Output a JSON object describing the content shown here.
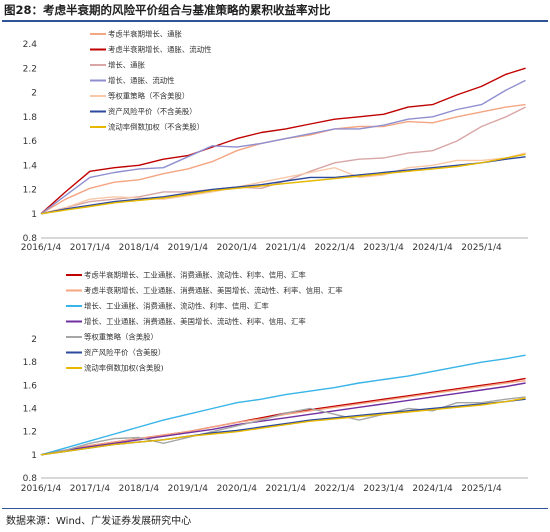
{
  "figure": {
    "title": "图28：考虑半衰期的风险平价组合与基准策略的累积收益率对比",
    "source": "数据来源：Wind、广发证券发展研究中心"
  },
  "chart_data": [
    {
      "type": "line",
      "x_ticks": [
        "2016/1/4",
        "2017/1/4",
        "2018/1/4",
        "2019/1/4",
        "2020/1/4",
        "2021/1/4",
        "2022/1/4",
        "2023/1/4",
        "2024/1/4",
        "2025/1/4"
      ],
      "ylim": [
        0.8,
        2.4
      ],
      "y_ticks": [
        "0.8",
        "1",
        "1.2",
        "1.4",
        "1.6",
        "1.8",
        "2",
        "2.2",
        "2.4"
      ],
      "legend_position": "top-left",
      "series": [
        {
          "name": "考虑半衰期增长、通胀",
          "color": "#f4a582",
          "x": [
            2016.0,
            2016.5,
            2017.0,
            2017.5,
            2018.0,
            2018.5,
            2019.0,
            2019.5,
            2020.0,
            2020.5,
            2021.0,
            2021.5,
            2022.0,
            2022.5,
            2023.0,
            2023.5,
            2024.0,
            2024.5,
            2025.0,
            2025.5,
            2025.9
          ],
          "y": [
            1.0,
            1.12,
            1.21,
            1.26,
            1.28,
            1.33,
            1.37,
            1.43,
            1.52,
            1.58,
            1.62,
            1.65,
            1.7,
            1.72,
            1.72,
            1.76,
            1.75,
            1.8,
            1.84,
            1.88,
            1.9
          ]
        },
        {
          "name": "考虑半衰期增长、通胀、流动性",
          "color": "#c00000",
          "x": [
            2016.0,
            2016.5,
            2017.0,
            2017.5,
            2018.0,
            2018.5,
            2019.0,
            2019.5,
            2020.0,
            2020.5,
            2021.0,
            2021.5,
            2022.0,
            2022.5,
            2023.0,
            2023.5,
            2024.0,
            2024.5,
            2025.0,
            2025.5,
            2025.9
          ],
          "y": [
            1.0,
            1.18,
            1.35,
            1.38,
            1.4,
            1.45,
            1.48,
            1.55,
            1.62,
            1.67,
            1.7,
            1.74,
            1.78,
            1.8,
            1.82,
            1.88,
            1.9,
            1.98,
            2.05,
            2.15,
            2.2
          ]
        },
        {
          "name": "增长、通胀",
          "color": "#d9a6a6",
          "x": [
            2016.0,
            2016.5,
            2017.0,
            2017.5,
            2018.0,
            2018.5,
            2019.0,
            2019.5,
            2020.0,
            2020.5,
            2021.0,
            2021.5,
            2022.0,
            2022.5,
            2023.0,
            2023.5,
            2024.0,
            2024.5,
            2025.0,
            2025.5,
            2025.9
          ],
          "y": [
            1.0,
            1.05,
            1.1,
            1.12,
            1.14,
            1.18,
            1.18,
            1.2,
            1.22,
            1.21,
            1.27,
            1.35,
            1.42,
            1.45,
            1.46,
            1.5,
            1.52,
            1.6,
            1.72,
            1.8,
            1.88
          ]
        },
        {
          "name": "增长、通胀、流动性",
          "color": "#8f8fd0",
          "x": [
            2016.0,
            2016.5,
            2017.0,
            2017.5,
            2018.0,
            2018.5,
            2019.0,
            2019.5,
            2020.0,
            2020.5,
            2021.0,
            2021.5,
            2022.0,
            2022.5,
            2023.0,
            2023.5,
            2024.0,
            2024.5,
            2025.0,
            2025.5,
            2025.9
          ],
          "y": [
            1.0,
            1.15,
            1.3,
            1.34,
            1.37,
            1.38,
            1.47,
            1.56,
            1.55,
            1.58,
            1.62,
            1.66,
            1.7,
            1.7,
            1.73,
            1.78,
            1.8,
            1.86,
            1.9,
            2.02,
            2.1
          ]
        },
        {
          "name": "等权重策略（不含美股）",
          "color": "#f9c8a8",
          "x": [
            2016.0,
            2016.5,
            2017.0,
            2017.5,
            2018.0,
            2018.5,
            2019.0,
            2019.5,
            2020.0,
            2020.5,
            2021.0,
            2021.5,
            2022.0,
            2022.5,
            2023.0,
            2023.5,
            2024.0,
            2024.5,
            2025.0,
            2025.5,
            2025.9
          ],
          "y": [
            1.0,
            1.05,
            1.12,
            1.14,
            1.13,
            1.12,
            1.15,
            1.18,
            1.22,
            1.26,
            1.3,
            1.34,
            1.38,
            1.3,
            1.32,
            1.38,
            1.4,
            1.44,
            1.44,
            1.46,
            1.5
          ]
        },
        {
          "name": "资产风险平价（不含美股）",
          "color": "#2e4a9e",
          "x": [
            2016.0,
            2016.5,
            2017.0,
            2017.5,
            2018.0,
            2018.5,
            2019.0,
            2019.5,
            2020.0,
            2020.5,
            2021.0,
            2021.5,
            2022.0,
            2022.5,
            2023.0,
            2023.5,
            2024.0,
            2024.5,
            2025.0,
            2025.5,
            2025.9
          ],
          "y": [
            1.0,
            1.04,
            1.07,
            1.1,
            1.12,
            1.14,
            1.17,
            1.2,
            1.22,
            1.24,
            1.27,
            1.3,
            1.3,
            1.32,
            1.34,
            1.36,
            1.38,
            1.4,
            1.42,
            1.45,
            1.47
          ]
        },
        {
          "name": "流动率倒数加权（不含美股）",
          "color": "#e6b800",
          "x": [
            2016.0,
            2016.5,
            2017.0,
            2017.5,
            2018.0,
            2018.5,
            2019.0,
            2019.5,
            2020.0,
            2020.5,
            2021.0,
            2021.5,
            2022.0,
            2022.5,
            2023.0,
            2023.5,
            2024.0,
            2024.5,
            2025.0,
            2025.5,
            2025.9
          ],
          "y": [
            1.0,
            1.03,
            1.06,
            1.09,
            1.11,
            1.13,
            1.16,
            1.19,
            1.21,
            1.23,
            1.25,
            1.27,
            1.29,
            1.31,
            1.33,
            1.35,
            1.37,
            1.39,
            1.42,
            1.46,
            1.49
          ]
        }
      ]
    },
    {
      "type": "line",
      "x_ticks": [
        "2016/1/4",
        "2017/1/4",
        "2018/1/4",
        "2019/1/4",
        "2020/1/4",
        "2021/1/4",
        "2022/1/4",
        "2023/1/4",
        "2024/1/4",
        "2025/1/4"
      ],
      "ylim": [
        0.8,
        2.0
      ],
      "y_ticks": [
        "0.8",
        "1",
        "1.2",
        "1.4",
        "1.6",
        "1.8",
        "2"
      ],
      "legend_position": "top-left",
      "series": [
        {
          "name": "考虑半衰期增长、工业通胀、消费通胀、流动性、利率、信用、汇率",
          "color": "#c00000",
          "x": [
            2016.0,
            2016.5,
            2017.0,
            2017.5,
            2018.0,
            2018.5,
            2019.0,
            2019.5,
            2020.0,
            2020.5,
            2021.0,
            2021.5,
            2022.0,
            2022.5,
            2023.0,
            2023.5,
            2024.0,
            2024.5,
            2025.0,
            2025.5,
            2025.9
          ],
          "y": [
            1.0,
            1.04,
            1.08,
            1.11,
            1.14,
            1.17,
            1.2,
            1.24,
            1.28,
            1.32,
            1.36,
            1.39,
            1.42,
            1.45,
            1.48,
            1.51,
            1.54,
            1.57,
            1.6,
            1.63,
            1.66
          ]
        },
        {
          "name": "考虑半衰期增长、工业通胀、消费通胀、美国增长、流动性、利率、信用、汇率",
          "color": "#f4a582",
          "x": [
            2016.0,
            2016.5,
            2017.0,
            2017.5,
            2018.0,
            2018.5,
            2019.0,
            2019.5,
            2020.0,
            2020.5,
            2021.0,
            2021.5,
            2022.0,
            2022.5,
            2023.0,
            2023.5,
            2024.0,
            2024.5,
            2025.0,
            2025.5,
            2025.9
          ],
          "y": [
            1.0,
            1.04,
            1.08,
            1.11,
            1.14,
            1.17,
            1.2,
            1.24,
            1.28,
            1.31,
            1.35,
            1.38,
            1.41,
            1.44,
            1.47,
            1.5,
            1.53,
            1.56,
            1.59,
            1.62,
            1.64
          ]
        },
        {
          "name": "增长、工业通胀、消费通胀、流动性、利率、信用、汇率",
          "color": "#38b4e8",
          "x": [
            2016.0,
            2016.5,
            2017.0,
            2017.5,
            2018.0,
            2018.5,
            2019.0,
            2019.5,
            2020.0,
            2020.5,
            2021.0,
            2021.5,
            2022.0,
            2022.5,
            2023.0,
            2023.5,
            2024.0,
            2024.5,
            2025.0,
            2025.5,
            2025.9
          ],
          "y": [
            1.0,
            1.06,
            1.12,
            1.18,
            1.24,
            1.3,
            1.35,
            1.4,
            1.45,
            1.48,
            1.52,
            1.55,
            1.58,
            1.62,
            1.65,
            1.68,
            1.72,
            1.76,
            1.8,
            1.83,
            1.86
          ]
        },
        {
          "name": "增长、工业通胀、消费通胀、美国增长、流动性、利率、信用、汇率",
          "color": "#7030a0",
          "x": [
            2016.0,
            2016.5,
            2017.0,
            2017.5,
            2018.0,
            2018.5,
            2019.0,
            2019.5,
            2020.0,
            2020.5,
            2021.0,
            2021.5,
            2022.0,
            2022.5,
            2023.0,
            2023.5,
            2024.0,
            2024.5,
            2025.0,
            2025.5,
            2025.9
          ],
          "y": [
            1.0,
            1.04,
            1.07,
            1.1,
            1.13,
            1.16,
            1.19,
            1.22,
            1.26,
            1.29,
            1.32,
            1.35,
            1.38,
            1.41,
            1.44,
            1.47,
            1.5,
            1.53,
            1.56,
            1.59,
            1.62
          ]
        },
        {
          "name": "等权重策略（含美股）",
          "color": "#a6a6a6",
          "x": [
            2016.0,
            2016.5,
            2017.0,
            2017.5,
            2018.0,
            2018.5,
            2019.0,
            2019.5,
            2020.0,
            2020.5,
            2021.0,
            2021.5,
            2022.0,
            2022.5,
            2023.0,
            2023.5,
            2024.0,
            2024.5,
            2025.0,
            2025.5,
            2025.9
          ],
          "y": [
            1.0,
            1.04,
            1.1,
            1.14,
            1.15,
            1.1,
            1.15,
            1.2,
            1.25,
            1.3,
            1.36,
            1.4,
            1.35,
            1.3,
            1.35,
            1.4,
            1.38,
            1.45,
            1.45,
            1.48,
            1.5
          ]
        },
        {
          "name": "资产风险平价（含美股）",
          "color": "#2e4a9e",
          "x": [
            2016.0,
            2016.5,
            2017.0,
            2017.5,
            2018.0,
            2018.5,
            2019.0,
            2019.5,
            2020.0,
            2020.5,
            2021.0,
            2021.5,
            2022.0,
            2022.5,
            2023.0,
            2023.5,
            2024.0,
            2024.5,
            2025.0,
            2025.5,
            2025.9
          ],
          "y": [
            1.0,
            1.03,
            1.06,
            1.09,
            1.11,
            1.13,
            1.16,
            1.19,
            1.21,
            1.24,
            1.27,
            1.3,
            1.32,
            1.34,
            1.36,
            1.38,
            1.4,
            1.42,
            1.44,
            1.46,
            1.48
          ]
        },
        {
          "name": "流动率倒数加权(含美股)",
          "color": "#e6b800",
          "x": [
            2016.0,
            2016.5,
            2017.0,
            2017.5,
            2018.0,
            2018.5,
            2019.0,
            2019.5,
            2020.0,
            2020.5,
            2021.0,
            2021.5,
            2022.0,
            2022.5,
            2023.0,
            2023.5,
            2024.0,
            2024.5,
            2025.0,
            2025.5,
            2025.9
          ],
          "y": [
            1.0,
            1.03,
            1.06,
            1.09,
            1.11,
            1.13,
            1.16,
            1.18,
            1.2,
            1.23,
            1.26,
            1.29,
            1.31,
            1.33,
            1.35,
            1.37,
            1.39,
            1.41,
            1.43,
            1.46,
            1.49
          ]
        }
      ]
    }
  ]
}
